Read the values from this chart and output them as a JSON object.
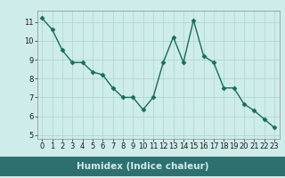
{
  "x": [
    0,
    1,
    2,
    3,
    4,
    5,
    6,
    7,
    8,
    9,
    10,
    11,
    12,
    13,
    14,
    15,
    16,
    17,
    18,
    19,
    20,
    21,
    22,
    23
  ],
  "y": [
    11.2,
    10.6,
    9.5,
    8.85,
    8.85,
    8.35,
    8.2,
    7.5,
    7.0,
    7.0,
    6.35,
    7.0,
    8.85,
    10.2,
    8.85,
    11.1,
    9.2,
    8.85,
    7.5,
    7.5,
    6.65,
    6.3,
    5.85,
    5.4
  ],
  "line_color": "#1a6b5a",
  "marker": "D",
  "marker_size": 2.5,
  "bg_color": "#ceecea",
  "grid_color": "#b0d8d5",
  "xlabel": "Humidex (Indice chaleur)",
  "xlabel_fontsize": 7.5,
  "xticks": [
    0,
    1,
    2,
    3,
    4,
    5,
    6,
    7,
    8,
    9,
    10,
    11,
    12,
    13,
    14,
    15,
    16,
    17,
    18,
    19,
    20,
    21,
    22,
    23
  ],
  "yticks": [
    5,
    6,
    7,
    8,
    9,
    10,
    11
  ],
  "ylim": [
    4.8,
    11.6
  ],
  "xlim": [
    -0.5,
    23.5
  ],
  "tick_fontsize": 6.0,
  "bottom_bar_color": "#2e7070",
  "bottom_bar_text_color": "#ceecea"
}
